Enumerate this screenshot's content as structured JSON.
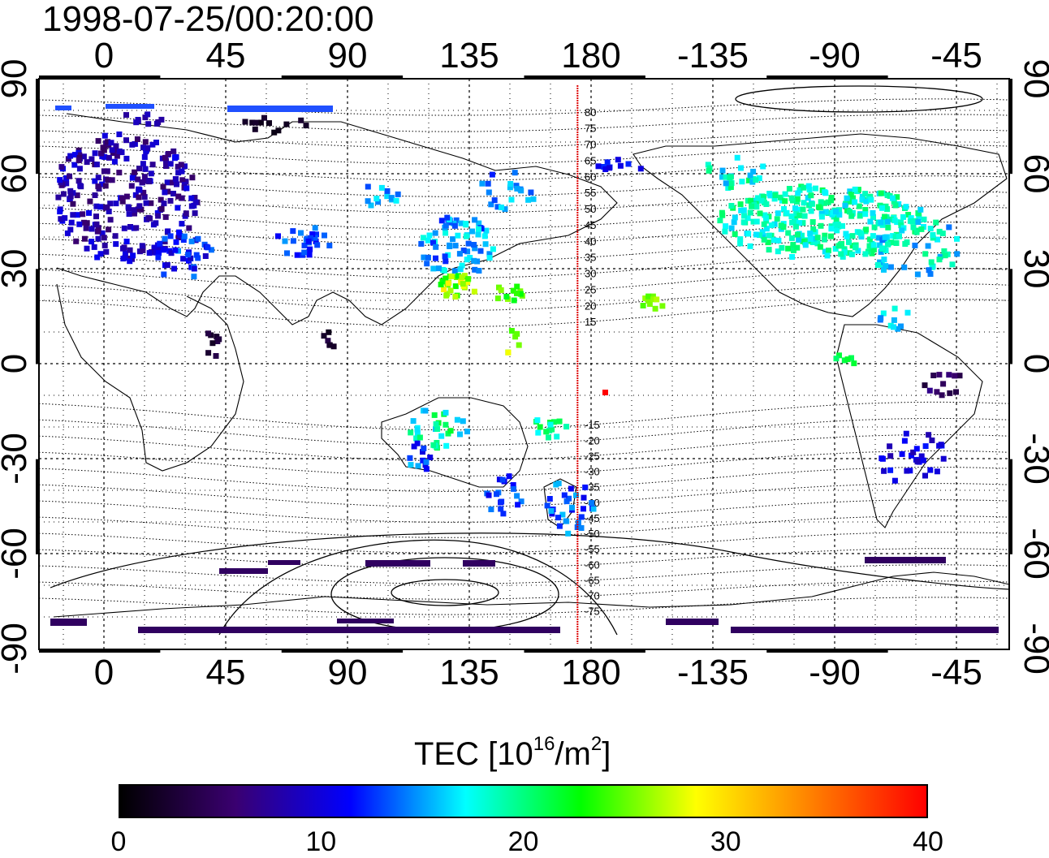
{
  "title": "1998-07-25/00:20:00",
  "map": {
    "lon_labels": [
      "0",
      "45",
      "90",
      "135",
      "180",
      "-135",
      "-90",
      "-45"
    ],
    "lat_labels": [
      "90",
      "60",
      "30",
      "0",
      "-30",
      "-60",
      "-90"
    ],
    "meridian_marker_lon": 175,
    "magnetic_lat_labels": [
      "80",
      "75",
      "70",
      "65",
      "60",
      "55",
      "50",
      "45",
      "40",
      "35",
      "30",
      "25",
      "20",
      "15",
      "-15",
      "-20",
      "-25",
      "-30",
      "-35",
      "-40",
      "-45",
      "-50",
      "-55",
      "-60",
      "-65",
      "-70",
      "-75"
    ],
    "marker_color": "#dd0000"
  },
  "colorbar": {
    "title_prefix": "TEC  [10",
    "title_exp1": "16",
    "title_mid": "/m",
    "title_exp2": "2",
    "title_suffix": "]",
    "min": 0,
    "max": 40,
    "ticks": [
      "0",
      "10",
      "20",
      "30",
      "40"
    ],
    "colors": [
      "#000000",
      "#3a0070",
      "#0000ff",
      "#00ffff",
      "#00ff00",
      "#ffff00",
      "#ff8000",
      "#ff0000"
    ]
  }
}
